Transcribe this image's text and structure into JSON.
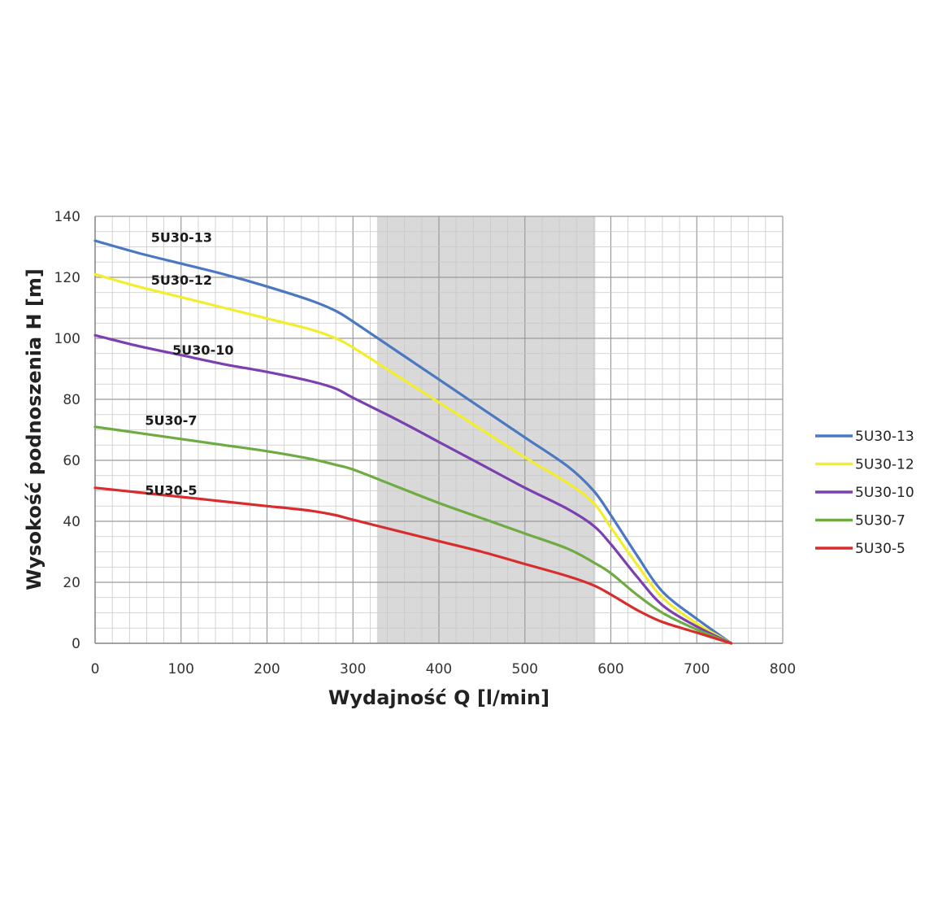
{
  "chart_data": {
    "type": "line",
    "title": "",
    "xlabel": "Wydajność Q [l/min]",
    "ylabel": "Wysokość podnoszenia H [m]",
    "xlim": [
      0,
      800
    ],
    "ylim": [
      0,
      140
    ],
    "xticks": [
      0,
      100,
      200,
      300,
      400,
      500,
      600,
      700,
      800
    ],
    "yticks": [
      0,
      20,
      40,
      60,
      80,
      100,
      120,
      140
    ],
    "grid": true,
    "shaded_region": {
      "x": [
        328,
        582
      ],
      "color": "#d9d9d9"
    },
    "legend": {
      "position": "right"
    },
    "series": [
      {
        "name": "5U30-13",
        "color": "#4a78c2",
        "label_at": [
          65,
          133
        ],
        "points": [
          [
            0,
            132
          ],
          [
            50,
            128
          ],
          [
            100,
            124.5
          ],
          [
            150,
            121
          ],
          [
            200,
            117
          ],
          [
            250,
            112.5
          ],
          [
            280,
            109
          ],
          [
            300,
            105.5
          ],
          [
            350,
            96
          ],
          [
            400,
            86.5
          ],
          [
            450,
            77
          ],
          [
            500,
            67.5
          ],
          [
            550,
            58
          ],
          [
            580,
            50
          ],
          [
            600,
            42
          ],
          [
            630,
            29
          ],
          [
            660,
            17
          ],
          [
            700,
            8
          ],
          [
            740,
            0
          ]
        ]
      },
      {
        "name": "5U30-12",
        "color": "#f2ee2e",
        "label_at": [
          65,
          119
        ],
        "points": [
          [
            0,
            121
          ],
          [
            50,
            117
          ],
          [
            100,
            113.5
          ],
          [
            150,
            110
          ],
          [
            200,
            106.5
          ],
          [
            250,
            103
          ],
          [
            280,
            100
          ],
          [
            300,
            97
          ],
          [
            350,
            88
          ],
          [
            400,
            79
          ],
          [
            450,
            70
          ],
          [
            500,
            61
          ],
          [
            550,
            52.5
          ],
          [
            580,
            46
          ],
          [
            600,
            38
          ],
          [
            630,
            26
          ],
          [
            660,
            15
          ],
          [
            700,
            6.5
          ],
          [
            740,
            0
          ]
        ]
      },
      {
        "name": "5U30-10",
        "color": "#7b3fb0",
        "label_at": [
          90,
          96
        ],
        "points": [
          [
            0,
            101
          ],
          [
            50,
            97.5
          ],
          [
            100,
            94.5
          ],
          [
            150,
            91.5
          ],
          [
            200,
            89
          ],
          [
            250,
            86
          ],
          [
            280,
            83.5
          ],
          [
            300,
            80.5
          ],
          [
            350,
            73.5
          ],
          [
            400,
            66
          ],
          [
            450,
            58.5
          ],
          [
            500,
            51
          ],
          [
            550,
            44
          ],
          [
            580,
            38.5
          ],
          [
            600,
            32.5
          ],
          [
            630,
            22
          ],
          [
            660,
            12.5
          ],
          [
            700,
            5.5
          ],
          [
            740,
            0
          ]
        ]
      },
      {
        "name": "5U30-7",
        "color": "#6fab43",
        "label_at": [
          58,
          73
        ],
        "points": [
          [
            0,
            71
          ],
          [
            50,
            69
          ],
          [
            100,
            67
          ],
          [
            150,
            65
          ],
          [
            200,
            63
          ],
          [
            250,
            60.5
          ],
          [
            280,
            58.5
          ],
          [
            300,
            57
          ],
          [
            350,
            51.5
          ],
          [
            400,
            46
          ],
          [
            450,
            41
          ],
          [
            500,
            36
          ],
          [
            550,
            31
          ],
          [
            580,
            26.5
          ],
          [
            600,
            23
          ],
          [
            630,
            16
          ],
          [
            660,
            10
          ],
          [
            700,
            4.5
          ],
          [
            740,
            0
          ]
        ]
      },
      {
        "name": "5U30-5",
        "color": "#d72d2d",
        "label_at": [
          58,
          50
        ],
        "points": [
          [
            0,
            51
          ],
          [
            50,
            49.5
          ],
          [
            100,
            48
          ],
          [
            150,
            46.5
          ],
          [
            200,
            45
          ],
          [
            250,
            43.5
          ],
          [
            280,
            42
          ],
          [
            300,
            40.5
          ],
          [
            350,
            37
          ],
          [
            400,
            33.5
          ],
          [
            450,
            30
          ],
          [
            500,
            26
          ],
          [
            550,
            22
          ],
          [
            580,
            19
          ],
          [
            600,
            16
          ],
          [
            630,
            11
          ],
          [
            660,
            7
          ],
          [
            700,
            3.5
          ],
          [
            740,
            0
          ]
        ]
      }
    ]
  }
}
